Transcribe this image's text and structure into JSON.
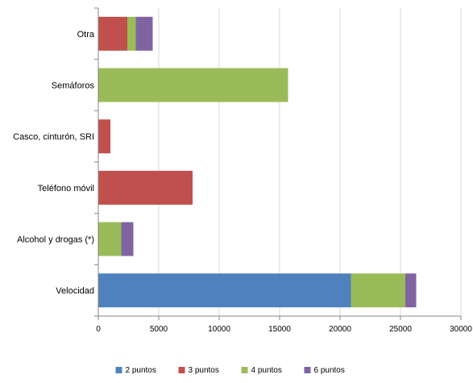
{
  "chart_data": {
    "type": "bar",
    "orientation": "horizontal",
    "stacked": true,
    "categories": [
      "Otra",
      "Semáforos",
      "Casco, cinturón, SRI",
      "Teléfono móvil",
      "Alcohol y drogas (*)",
      "Velocidad"
    ],
    "series": [
      {
        "name": "2 puntos",
        "color": "#4F81BD",
        "values": [
          0,
          0,
          0,
          0,
          0,
          20900
        ]
      },
      {
        "name": "3 puntos",
        "color": "#C0504D",
        "values": [
          2400,
          0,
          1000,
          7800,
          0,
          0
        ]
      },
      {
        "name": "4 puntos",
        "color": "#9BBB59",
        "values": [
          700,
          15700,
          0,
          0,
          1900,
          4500
        ]
      },
      {
        "name": "6 puntos",
        "color": "#8064A2",
        "values": [
          1400,
          0,
          0,
          0,
          1000,
          900
        ]
      }
    ],
    "xlim": [
      0,
      30000
    ],
    "xticks": [
      "0",
      "5000",
      "10000",
      "15000",
      "20000",
      "25000",
      "30000"
    ],
    "grid": true,
    "legend_position": "bottom",
    "title": "",
    "xlabel": "",
    "ylabel": ""
  }
}
